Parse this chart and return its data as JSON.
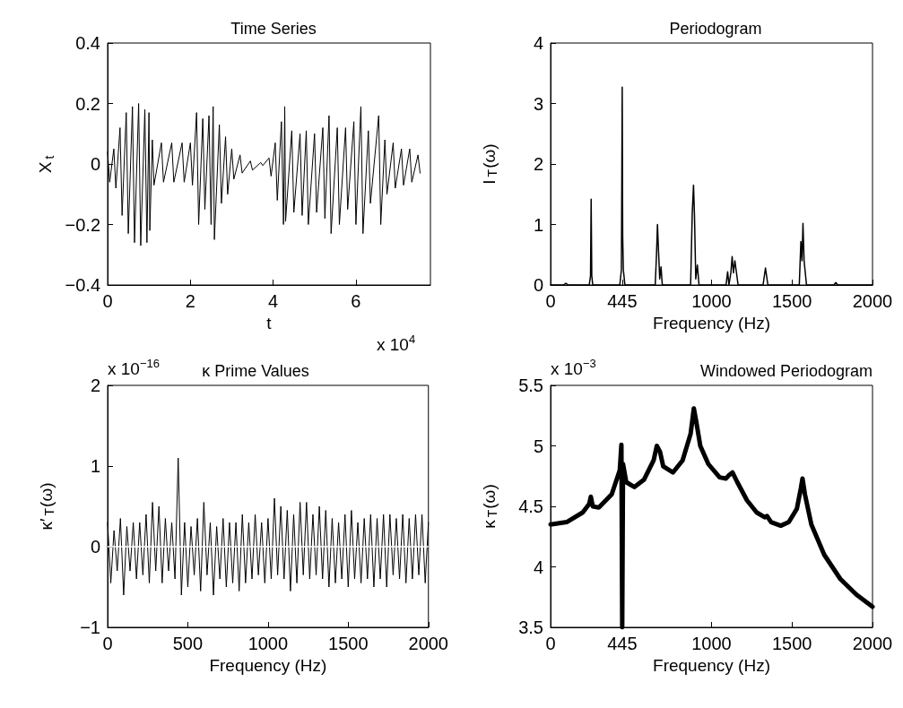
{
  "chart_data": [
    {
      "type": "line",
      "title": "Time Series",
      "xlabel": "t",
      "ylabel": "X$_{t}$",
      "annotations": [
        "x 10$^{4}$"
      ],
      "x": [
        0,
        0.05,
        0.15,
        0.2,
        0.3,
        0.35,
        0.45,
        0.5,
        0.6,
        0.65,
        0.75,
        0.8,
        0.9,
        0.95,
        1.0,
        1.02,
        1.08,
        1.12,
        1.3,
        1.35,
        1.55,
        1.6,
        1.8,
        1.85,
        2.0,
        2.05,
        2.15,
        2.2,
        2.3,
        2.35,
        2.45,
        2.5,
        2.55,
        2.58,
        2.7,
        2.75,
        2.85,
        2.9,
        3.0,
        3.05,
        3.2,
        3.25,
        3.45,
        3.5,
        3.7,
        3.75,
        3.9,
        3.95,
        4.05,
        4.1,
        4.2,
        4.25,
        4.28,
        4.3,
        4.45,
        4.5,
        4.65,
        4.7,
        4.8,
        4.85,
        5.0,
        5.05,
        5.2,
        5.25,
        5.35,
        5.4,
        5.55,
        5.6,
        5.75,
        5.8,
        5.95,
        6.0,
        6.12,
        6.17,
        6.3,
        6.35,
        6.55,
        6.6,
        6.7,
        6.75,
        6.9,
        6.95,
        7.1,
        7.15,
        7.3,
        7.35,
        7.5,
        7.55
      ],
      "series": [
        {
          "color": "#000000",
          "values": [
            0.04,
            -0.06,
            0.05,
            -0.08,
            0.12,
            -0.17,
            0.17,
            -0.23,
            0.19,
            -0.26,
            0.2,
            -0.27,
            0.18,
            -0.26,
            0.17,
            -0.22,
            0.08,
            -0.07,
            0.07,
            -0.06,
            0.07,
            -0.06,
            0.07,
            -0.06,
            0.07,
            -0.07,
            0.17,
            -0.2,
            0.15,
            -0.15,
            0.16,
            -0.2,
            0.19,
            -0.25,
            0.13,
            -0.13,
            0.09,
            -0.1,
            0.05,
            -0.05,
            0.03,
            -0.03,
            0.01,
            -0.02,
            0.005,
            -0.005,
            0.02,
            -0.04,
            0.07,
            -0.12,
            0.14,
            -0.2,
            0.19,
            -0.19,
            0.11,
            -0.16,
            0.1,
            -0.17,
            0.11,
            -0.2,
            0.1,
            -0.16,
            0.12,
            -0.18,
            0.16,
            -0.23,
            0.12,
            -0.2,
            0.12,
            -0.15,
            0.14,
            -0.2,
            0.19,
            -0.23,
            0.11,
            -0.13,
            0.16,
            -0.2,
            0.08,
            -0.1,
            0.07,
            -0.08,
            0.05,
            -0.07,
            0.05,
            -0.06,
            0.03,
            -0.03
          ]
        }
      ],
      "xlim": [
        0,
        7.8
      ],
      "xticks": [
        0,
        2,
        4,
        6
      ],
      "ylim": [
        -0.4,
        0.4
      ],
      "yticks": [
        -0.4,
        -0.2,
        0,
        0.2,
        0.4
      ]
    },
    {
      "type": "line",
      "title": "Periodogram",
      "xlabel": "Frequency (Hz)",
      "ylabel": "I$_{T}$(ω)",
      "x": [
        0,
        80,
        95,
        110,
        240,
        248,
        252,
        256,
        262,
        430,
        440,
        445,
        448,
        452,
        462,
        650,
        658,
        664,
        670,
        678,
        686,
        694,
        870,
        880,
        888,
        894,
        902,
        912,
        922,
        1090,
        1100,
        1108,
        1120,
        1128,
        1136,
        1145,
        1155,
        1165,
        1320,
        1335,
        1350,
        1545,
        1555,
        1562,
        1568,
        1575,
        1590,
        1760,
        1772,
        1784,
        2000
      ],
      "series": [
        {
          "color": "#000000",
          "values": [
            0,
            0,
            0.03,
            0,
            0,
            0.15,
            1.42,
            0.15,
            0,
            0,
            0.25,
            3.27,
            0.8,
            0.25,
            0,
            0,
            0.5,
            1.0,
            0.6,
            0.1,
            0.3,
            0,
            0,
            1.18,
            1.65,
            1.15,
            0.1,
            0.33,
            0,
            0,
            0.22,
            0,
            0.2,
            0.47,
            0.2,
            0.4,
            0.2,
            0,
            0,
            0.28,
            0,
            0,
            0.72,
            0.4,
            1.02,
            0.4,
            0,
            0,
            0.04,
            0,
            0
          ]
        }
      ],
      "xlim": [
        0,
        2000
      ],
      "xticks": [
        0,
        445,
        1000,
        1500,
        2000
      ],
      "ylim": [
        0,
        4
      ],
      "yticks": [
        0,
        1,
        2,
        3,
        4
      ]
    },
    {
      "type": "line",
      "title": "κ Prime Values",
      "xlabel": "Frequency (Hz)",
      "ylabel": "κ′$_{T}$(ω)",
      "annotations": [
        "x 10$^{−16}$"
      ],
      "x": [
        0,
        20,
        40,
        60,
        80,
        100,
        120,
        140,
        160,
        180,
        200,
        220,
        240,
        260,
        280,
        300,
        320,
        340,
        360,
        380,
        400,
        420,
        440,
        460,
        480,
        500,
        520,
        540,
        560,
        580,
        600,
        620,
        640,
        660,
        680,
        700,
        720,
        740,
        760,
        780,
        800,
        820,
        840,
        860,
        880,
        900,
        920,
        940,
        960,
        980,
        1000,
        1020,
        1040,
        1060,
        1080,
        1100,
        1120,
        1140,
        1160,
        1180,
        1200,
        1220,
        1240,
        1260,
        1280,
        1300,
        1320,
        1340,
        1360,
        1380,
        1400,
        1420,
        1440,
        1460,
        1480,
        1500,
        1520,
        1540,
        1560,
        1580,
        1600,
        1620,
        1640,
        1660,
        1680,
        1700,
        1720,
        1740,
        1760,
        1780,
        1800,
        1820,
        1840,
        1860,
        1880,
        1900,
        1920,
        1940,
        1960,
        1980,
        2000
      ],
      "series": [
        {
          "color": "#000000",
          "values": [
            0.3,
            -0.45,
            0.2,
            -0.3,
            0.35,
            -0.6,
            0.25,
            -0.3,
            0.3,
            -0.4,
            0.3,
            -0.35,
            0.4,
            -0.45,
            0.55,
            -0.3,
            0.5,
            -0.45,
            0.35,
            -0.3,
            0.3,
            -0.4,
            1.1,
            -0.6,
            0.3,
            -0.5,
            0.25,
            -0.35,
            0.35,
            -0.55,
            0.55,
            -0.35,
            0.3,
            -0.6,
            0.25,
            -0.4,
            0.35,
            -0.5,
            0.3,
            -0.45,
            0.3,
            -0.55,
            0.4,
            -0.45,
            0.3,
            -0.4,
            0.4,
            -0.35,
            0.3,
            -0.45,
            0.35,
            -0.4,
            0.6,
            -0.35,
            0.5,
            -0.4,
            0.45,
            -0.55,
            0.4,
            -0.45,
            0.55,
            -0.35,
            0.55,
            -0.4,
            0.4,
            -0.35,
            0.5,
            -0.4,
            0.45,
            -0.5,
            0.35,
            -0.45,
            0.3,
            -0.4,
            0.4,
            -0.5,
            0.45,
            -0.4,
            0.3,
            -0.45,
            0.35,
            -0.4,
            0.4,
            -0.5,
            0.35,
            -0.4,
            0.4,
            -0.5,
            0.4,
            -0.35,
            0.35,
            -0.4,
            0.4,
            -0.45,
            0.35,
            -0.4,
            0.4,
            -0.35,
            0.4,
            -0.45,
            0.3
          ]
        }
      ],
      "ref_lines": [
        {
          "axis": "y",
          "value": 0,
          "color": "#ffffff"
        }
      ],
      "xlim": [
        0,
        2000
      ],
      "xticks": [
        0,
        500,
        1000,
        1500,
        2000
      ],
      "ylim": [
        -1,
        2
      ],
      "yticks": [
        -1,
        0,
        1,
        2
      ]
    },
    {
      "type": "line",
      "title": "Windowed Periodogram",
      "xlabel": "Frequency (Hz)",
      "ylabel": "κ$_{T}$(ω)",
      "annotations": [
        "x 10$^{−3}$"
      ],
      "x": [
        0,
        100,
        200,
        240,
        250,
        262,
        300,
        380,
        430,
        440,
        445,
        450,
        470,
        520,
        580,
        640,
        660,
        680,
        700,
        760,
        820,
        870,
        890,
        905,
        930,
        980,
        1050,
        1090,
        1110,
        1130,
        1160,
        1220,
        1280,
        1330,
        1345,
        1370,
        1430,
        1480,
        1530,
        1555,
        1565,
        1580,
        1620,
        1700,
        1800,
        1900,
        2000
      ],
      "series": [
        {
          "color": "#000000",
          "values": [
            4.35,
            4.37,
            4.45,
            4.52,
            4.58,
            4.5,
            4.49,
            4.6,
            4.8,
            5.01,
            3.5,
            4.85,
            4.7,
            4.66,
            4.72,
            4.88,
            5.0,
            4.95,
            4.83,
            4.78,
            4.88,
            5.1,
            5.31,
            5.2,
            5.0,
            4.85,
            4.74,
            4.73,
            4.76,
            4.78,
            4.7,
            4.55,
            4.45,
            4.41,
            4.42,
            4.37,
            4.34,
            4.37,
            4.48,
            4.65,
            4.73,
            4.6,
            4.35,
            4.1,
            3.9,
            3.77,
            3.67
          ]
        }
      ],
      "xlim": [
        0,
        2000
      ],
      "xticks": [
        0,
        445,
        1000,
        1500,
        2000
      ],
      "ylim": [
        3.5,
        5.5
      ],
      "yticks": [
        3.5,
        4,
        4.5,
        5,
        5.5
      ]
    }
  ]
}
